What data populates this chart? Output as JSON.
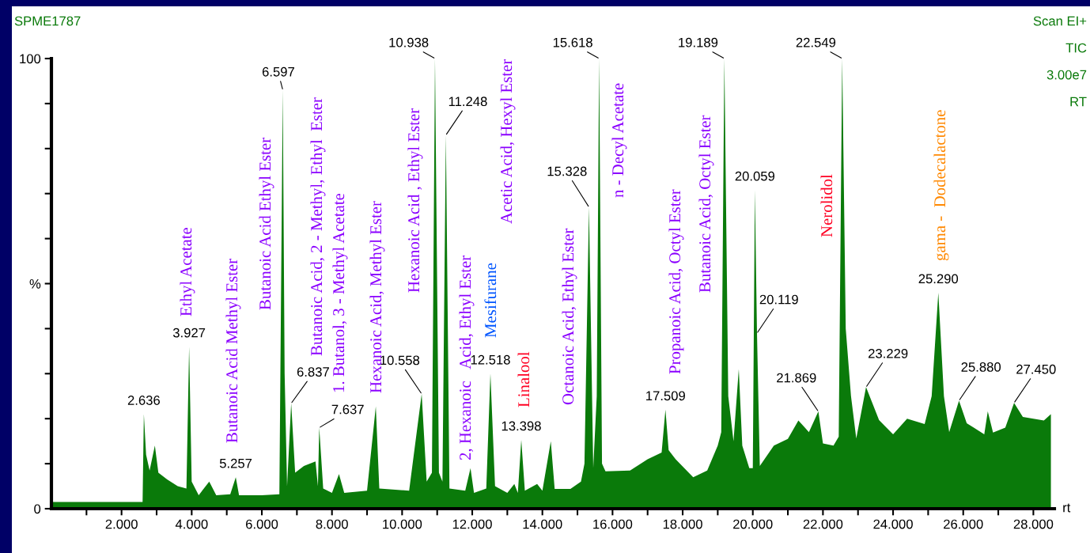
{
  "chart_data": {
    "type": "area",
    "series": [
      {
        "color": "#0a7a0a",
        "x": [
          0,
          2.6,
          2.636,
          2.7,
          2.8,
          2.95,
          3.05,
          3.3,
          3.6,
          3.85,
          3.927,
          4.0,
          4.2,
          4.5,
          4.7,
          5.1,
          5.257,
          5.35,
          6.0,
          6.5,
          6.597,
          6.65,
          6.72,
          6.837,
          6.95,
          7.2,
          7.53,
          7.6,
          7.637,
          7.75,
          8.0,
          8.2,
          8.35,
          9.0,
          9.25,
          9.35,
          10.2,
          10.558,
          10.7,
          10.85,
          10.938,
          11.05,
          11.15,
          11.248,
          11.35,
          11.8,
          11.95,
          12.05,
          12.4,
          12.518,
          12.65,
          13.0,
          13.2,
          13.3,
          13.398,
          13.5,
          13.85,
          14.0,
          14.24,
          14.35,
          14.8,
          15.1,
          15.2,
          15.328,
          15.45,
          15.55,
          15.618,
          15.7,
          15.8,
          16.5,
          17.0,
          17.4,
          17.509,
          17.6,
          17.8,
          18.3,
          18.7,
          19.0,
          19.1,
          19.189,
          19.3,
          19.45,
          19.6,
          19.7,
          19.9,
          20.0,
          20.059,
          20.119,
          20.2,
          20.6,
          21.0,
          21.3,
          21.6,
          21.869,
          22.0,
          22.3,
          22.45,
          22.549,
          22.65,
          22.8,
          22.95,
          23.229,
          23.6,
          24.0,
          24.4,
          24.9,
          25.1,
          25.29,
          25.45,
          25.6,
          25.88,
          26.1,
          26.3,
          26.6,
          26.7,
          26.85,
          27.2,
          27.45,
          27.7,
          28.3,
          28.5
        ],
        "values": [
          1.5,
          1.5,
          21,
          12,
          8.5,
          14,
          8,
          6.5,
          5,
          4.5,
          36,
          6,
          3,
          6,
          3,
          3.2,
          7,
          3,
          3,
          3.2,
          93,
          30,
          5,
          23.4,
          8,
          9.5,
          10.5,
          5,
          18,
          4.5,
          3.5,
          7.7,
          3.5,
          4,
          22.7,
          4.5,
          4,
          25.5,
          6,
          8,
          100,
          8,
          6,
          83,
          4.5,
          4,
          9,
          3.5,
          4.5,
          30,
          5,
          3.5,
          5.5,
          3.5,
          15.3,
          4,
          5.5,
          4,
          15,
          4.4,
          4.4,
          6,
          10,
          67,
          9,
          25,
          100,
          10,
          8.3,
          8.5,
          11,
          12.5,
          22,
          13,
          11,
          7,
          8.5,
          14,
          17,
          100,
          25,
          15,
          31,
          14,
          9,
          9,
          70.8,
          39,
          9.5,
          14,
          15.5,
          19.6,
          17,
          21.6,
          14.5,
          14,
          16,
          100,
          40,
          25,
          15.6,
          27,
          19.7,
          16.5,
          20,
          18.8,
          25,
          48,
          25,
          17,
          24,
          19,
          18,
          16.5,
          21.6,
          16.9,
          18,
          23.5,
          20.4,
          19.6,
          21
        ]
      }
    ],
    "xlim": [
      0,
      28.6
    ],
    "xticks": [
      {
        "value": 1,
        "label": null
      },
      {
        "value": 2,
        "label": "2.000"
      },
      {
        "value": 3,
        "label": null
      },
      {
        "value": 4,
        "label": "4.000"
      },
      {
        "value": 5,
        "label": null
      },
      {
        "value": 6,
        "label": "6.000"
      },
      {
        "value": 7,
        "label": null
      },
      {
        "value": 8,
        "label": "8.000"
      },
      {
        "value": 9,
        "label": null
      },
      {
        "value": 10,
        "label": "10.000"
      },
      {
        "value": 11,
        "label": null
      },
      {
        "value": 12,
        "label": "12.000"
      },
      {
        "value": 13,
        "label": null
      },
      {
        "value": 14,
        "label": "14.000"
      },
      {
        "value": 15,
        "label": null
      },
      {
        "value": 16,
        "label": "16.000"
      },
      {
        "value": 17,
        "label": null
      },
      {
        "value": 18,
        "label": "18.000"
      },
      {
        "value": 19,
        "label": null
      },
      {
        "value": 20,
        "label": "20.000"
      },
      {
        "value": 21,
        "label": null
      },
      {
        "value": 22,
        "label": "22.000"
      },
      {
        "value": 23,
        "label": null
      },
      {
        "value": 24,
        "label": "24.000"
      },
      {
        "value": 25,
        "label": null
      },
      {
        "value": 26,
        "label": "26.000"
      },
      {
        "value": 27,
        "label": null
      },
      {
        "value": 28,
        "label": "28.000"
      }
    ],
    "ylim": [
      0,
      100
    ],
    "yticks": [
      0,
      {
        "value": 10,
        "label": null
      },
      {
        "value": 20,
        "label": null
      },
      {
        "value": 30,
        "label": null
      },
      {
        "value": 40,
        "label": null
      },
      {
        "value": 50,
        "label": "%"
      },
      {
        "value": 60,
        "label": null
      },
      {
        "value": 70,
        "label": null
      },
      {
        "value": 80,
        "label": null
      },
      {
        "value": 90,
        "label": null
      },
      100
    ],
    "xlabel": "rt",
    "annotations": [
      "Ethyl Acetate",
      "Butanoic Acid Methyl Ester",
      "Butanoic Acid Ethyl Ester",
      "Butanoic Acid, 2 - Methyl, Ethyl  Ester",
      "1. Butanol, 3 - Methyl Acetate",
      "Hexanoic Acid, Methyl Ester",
      "Hexanoic Acid , Ethyl Ester",
      "2, Hexanoic   Acid, Ethyl Ester",
      "Mesifurane",
      "Linalool",
      "Acetic Acid, Hexyl Ester",
      "Octanoic Acid, Ethyl Ester",
      "n - Decyl Acetate",
      "Propanoic Acid, Octyl Ester",
      "Butanoic Acid, Octyl Ester",
      "Nerolidol",
      "gama -  Dodecalactone",
      "SPME1787",
      "Scan EI+",
      "TIC",
      "3.00e7",
      "RT",
      {
        "text": "2.636",
        "x": 2.636,
        "y": 21
      },
      {
        "text": "3.927",
        "x": 3.927,
        "y": 36
      },
      {
        "text": "5.257",
        "x": 5.257,
        "y": 7
      },
      {
        "text": "6.597",
        "x": 6.597,
        "y": 93
      },
      {
        "text": "6.837",
        "x": 6.837,
        "y": 23.4
      },
      {
        "text": "7.637",
        "x": 7.637,
        "y": 18
      },
      {
        "text": "10.558",
        "x": 10.558,
        "y": 25.5
      },
      {
        "text": "10.938",
        "x": 10.938,
        "y": 100
      },
      {
        "text": "11.248",
        "x": 11.248,
        "y": 83
      },
      {
        "text": "12.518",
        "x": 12.518,
        "y": 30
      },
      {
        "text": "13.398",
        "x": 13.398,
        "y": 15.3
      },
      {
        "text": "15.328",
        "x": 15.328,
        "y": 67
      },
      {
        "text": "15.618",
        "x": 15.618,
        "y": 100
      },
      {
        "text": "17.509",
        "x": 17.509,
        "y": 22
      },
      {
        "text": "19.189",
        "x": 19.189,
        "y": 100
      },
      {
        "text": "20.059",
        "x": 20.059,
        "y": 70.8
      },
      {
        "text": "20.119",
        "x": 20.119,
        "y": 39
      },
      {
        "text": "21.869",
        "x": 21.869,
        "y": 21.6
      },
      {
        "text": "22.549",
        "x": 22.549,
        "y": 100
      },
      {
        "text": "23.229",
        "x": 23.229,
        "y": 27
      },
      {
        "text": "25.290",
        "x": 25.29,
        "y": 48
      },
      {
        "text": "25.880",
        "x": 25.88,
        "y": 24
      },
      {
        "text": "27.450",
        "x": 27.45,
        "y": 23.5
      }
    ]
  }
}
